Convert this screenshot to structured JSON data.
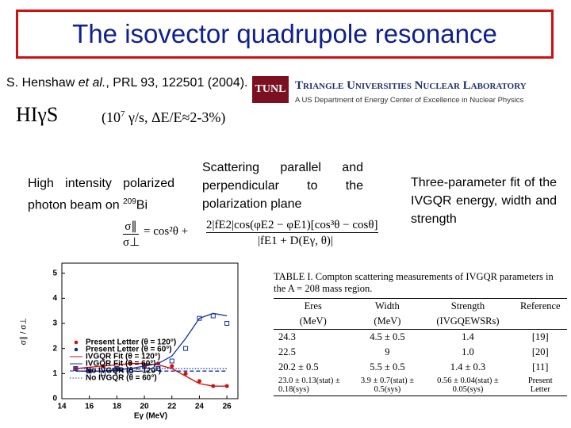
{
  "title": "The isovector quadrupole resonance",
  "reference": {
    "author": "S. Henshaw ",
    "etal": "et al.",
    "citation": ", PRL 93, 122501 (2004)."
  },
  "facility": {
    "name": "HIγS",
    "flux_open": "(10",
    "flux_exp": "7",
    "flux_rest": " γ/s, ΔE/E≈2-3%)"
  },
  "lab": {
    "logo": "TUNL",
    "name": "Triangle Universities Nuclear Laboratory",
    "subtitle": "A US Department of Energy Center of Excellence in Nuclear Physics"
  },
  "notes": {
    "beam": "High intensity polarized photon beam on ",
    "beam_mass": "209",
    "beam_element": "Bi",
    "scattering": "Scattering parallel and perpendicular to the polarization plane",
    "fit": "Three-parameter fit of the IVGQR energy, width and strength"
  },
  "formula": {
    "lhs_num": "σ∥",
    "lhs_den": "σ⊥",
    "rhs": "= cos²θ +",
    "num": "2|fE2|cos(φE2 − φE1)[cos³θ − cosθ]",
    "den": "|fE1 + D(Eγ, θ)|"
  },
  "plot": {
    "type": "line",
    "xlabel": "Eγ (MeV)",
    "ylabel": "σ∥ / σ⊥",
    "x": [
      15,
      16,
      17,
      18,
      19,
      20,
      21,
      22,
      23,
      24,
      25,
      26
    ],
    "xlim": [
      14,
      26.8
    ],
    "ylim": [
      0,
      5.4
    ],
    "xticks": [
      14,
      16,
      18,
      20,
      22,
      24,
      26
    ],
    "yticks": [
      0,
      1,
      2,
      3,
      4,
      5
    ],
    "series": [
      {
        "name": "Present Letter (θ = 120°)",
        "color": "#d01010",
        "style": "points",
        "values": [
          1.2,
          1.1,
          1.3,
          1.2,
          1.4,
          1.3,
          1.4,
          1.3,
          1.0,
          0.7,
          0.5,
          0.5
        ]
      },
      {
        "name": "Present Letter (θ = 60°)",
        "color": "#1030a0",
        "style": "points",
        "values": [
          1.2,
          1.1,
          1.0,
          1.2,
          1.1,
          1.3,
          1.2,
          1.5,
          2.0,
          3.2,
          3.3,
          3.0
        ]
      },
      {
        "name": "IVGQR Fit (θ = 120°)",
        "color": "#d01010",
        "style": "solid",
        "values": [
          1.2,
          1.25,
          1.3,
          1.35,
          1.4,
          1.4,
          1.35,
          1.2,
          0.9,
          0.6,
          0.5,
          0.5
        ]
      },
      {
        "name": "IVGQR Fit (θ = 60°)",
        "color": "#1030a0",
        "style": "solid",
        "values": [
          1.1,
          1.1,
          1.1,
          1.15,
          1.2,
          1.3,
          1.4,
          1.7,
          2.4,
          3.2,
          3.4,
          3.3
        ]
      },
      {
        "name": "No IVGQR (θ = 120°)",
        "color": "#1030a0",
        "style": "dashed",
        "values": [
          1.1,
          1.1,
          1.1,
          1.1,
          1.1,
          1.1,
          1.1,
          1.1,
          1.1,
          1.1,
          1.1,
          1.1
        ]
      },
      {
        "name": "No IVGQR (θ = 60°)",
        "color": "#1030a0",
        "style": "dotted",
        "values": [
          1.2,
          1.2,
          1.2,
          1.2,
          1.2,
          1.2,
          1.2,
          1.2,
          1.2,
          1.2,
          1.2,
          1.2
        ]
      }
    ]
  },
  "table": {
    "caption": "TABLE I. Compton scattering measurements of IVGQR parameters in the A = 208 mass region.",
    "header": [
      [
        "Eres",
        "(MeV)"
      ],
      [
        "Width",
        "(MeV)"
      ],
      [
        "Strength",
        "(IVGQEWSRs)"
      ],
      [
        "Reference",
        ""
      ]
    ],
    "rows": [
      [
        "24.3",
        "4.5 ± 0.5",
        "1.4",
        "[19]"
      ],
      [
        "22.5",
        "9",
        "1.0",
        "[20]"
      ],
      [
        "20.2 ± 0.5",
        "5.5 ± 0.5",
        "1.4 ± 0.3",
        "[11]"
      ],
      [
        "23.0 ± 0.13(stat) ± 0.18(sys)",
        "3.9 ± 0.7(stat) ± 0.5(sys)",
        "0.56 ± 0.04(stat) ± 0.05(sys)",
        "Present Letter"
      ]
    ]
  }
}
